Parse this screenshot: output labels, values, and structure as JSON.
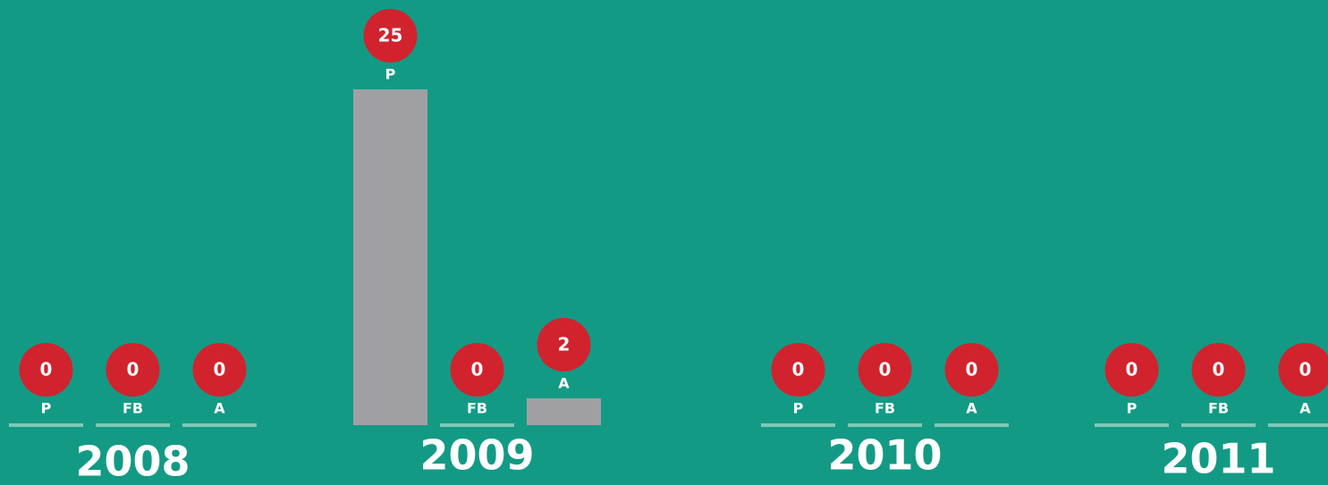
{
  "chart_data": {
    "type": "bar",
    "categories": [
      "2008",
      "2009",
      "2010",
      "2011"
    ],
    "color": "#a0a0a3",
    "series": [
      {
        "name": "P",
        "values": [
          0,
          25,
          0,
          0
        ]
      },
      {
        "name": "FB",
        "values": [
          0,
          0,
          0,
          0
        ]
      },
      {
        "name": "A",
        "values": [
          0,
          2,
          0,
          0
        ]
      }
    ]
  }
}
